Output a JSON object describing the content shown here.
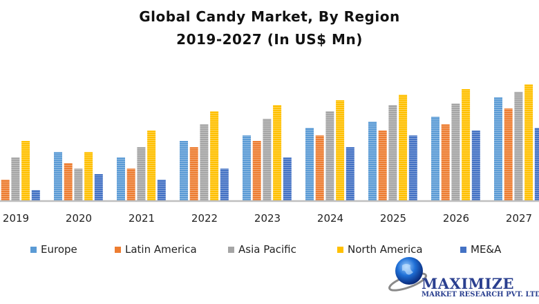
{
  "chart_data": {
    "type": "bar",
    "title": "Global Candy Market, By Region",
    "subtitle": "2019-2027 (In US$ Mn)",
    "categories": [
      "2019",
      "2020",
      "2021",
      "2022",
      "2023",
      "2024",
      "2025",
      "2026",
      "2027"
    ],
    "series": [
      {
        "name": "Europe",
        "color": "#5b9bd5",
        "values": [
          null,
          70,
          62,
          86,
          94,
          105,
          114,
          121,
          149
        ]
      },
      {
        "name": "Latin America",
        "color": "#ed7d31",
        "values": [
          30,
          54,
          46,
          77,
          86,
          94,
          101,
          110,
          133
        ]
      },
      {
        "name": "Asia Pacific",
        "color": "#a5a5a5",
        "values": [
          62,
          46,
          77,
          110,
          118,
          129,
          138,
          140,
          157
        ]
      },
      {
        "name": "North America",
        "color": "#ffc000",
        "values": [
          86,
          70,
          101,
          129,
          138,
          145,
          153,
          161,
          168
        ]
      },
      {
        "name": "ME&A",
        "color": "#4472c4",
        "values": [
          15,
          38,
          30,
          46,
          62,
          77,
          94,
          101,
          105
        ]
      }
    ],
    "ylim": [
      0,
      180
    ],
    "y_axis_shown": false,
    "grid": false,
    "legend_placement": "bottom",
    "axis_color": "#bfbfbf"
  },
  "logo": {
    "name": "MAXIMIZE",
    "tagline": "MARKET RESEARCH PVT. LTD."
  }
}
